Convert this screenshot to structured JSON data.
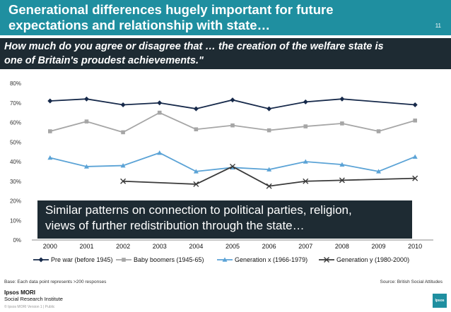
{
  "header": {
    "title_line1": "Generational differences hugely important for future",
    "title_line2": "expectations and relationship with state…",
    "page_number": "11"
  },
  "question": {
    "line1": "How much do you agree or disagree that … the creation of the welfare state is",
    "line2": "one of Britain's proudest achievements.\""
  },
  "callout": {
    "line1": "Similar patterns on connection to political parties, religion,",
    "line2": "views of further redistribution through the state…"
  },
  "footer": {
    "base_note": "Base: Each data point represents >200 responses",
    "source": "Source: British Social Attitudes",
    "logo_line1": "Ipsos MORI",
    "logo_line2": "Social Research Institute",
    "copyright": "© Ipsos MORI    Version 1 | Public",
    "brand": "Ipsos"
  },
  "colors": {
    "title_bar": "#1f8fa0",
    "subtitle_bar": "#1e2b33",
    "pre_war": "#16294a",
    "baby_boomers": "#a6a6a6",
    "gen_x": "#5ba3d6",
    "gen_y": "#3a3a3a"
  },
  "chart_data": {
    "type": "line",
    "categories": [
      "2000",
      "2001",
      "2002",
      "2003",
      "2004",
      "2005",
      "2006",
      "2007",
      "2008",
      "2009",
      "2010"
    ],
    "ylim": [
      0,
      80
    ],
    "yticks": [
      "0%",
      "10%",
      "20%",
      "30%",
      "40%",
      "50%",
      "60%",
      "70%",
      "80%"
    ],
    "grid": false,
    "legend_position": "bottom",
    "series": [
      {
        "name": "Pre war (before 1945)",
        "marker": "diamond",
        "values": [
          71,
          72,
          69,
          70,
          67,
          71.5,
          67,
          70.5,
          72,
          null,
          69
        ]
      },
      {
        "name": "Baby boomers (1945-65)",
        "marker": "square",
        "values": [
          55.5,
          60.5,
          55,
          65,
          56.5,
          58.5,
          56,
          58,
          59.5,
          55.5,
          61
        ]
      },
      {
        "name": "Generation x (1966-1979)",
        "marker": "triangle",
        "values": [
          42,
          37.5,
          38,
          44.5,
          35,
          37,
          36,
          40,
          38.5,
          35,
          42.5
        ]
      },
      {
        "name": "Generation y (1980-2000)",
        "marker": "x",
        "values": [
          null,
          null,
          30,
          null,
          28.5,
          37.5,
          27.5,
          30,
          30.5,
          null,
          31.5
        ]
      }
    ]
  }
}
